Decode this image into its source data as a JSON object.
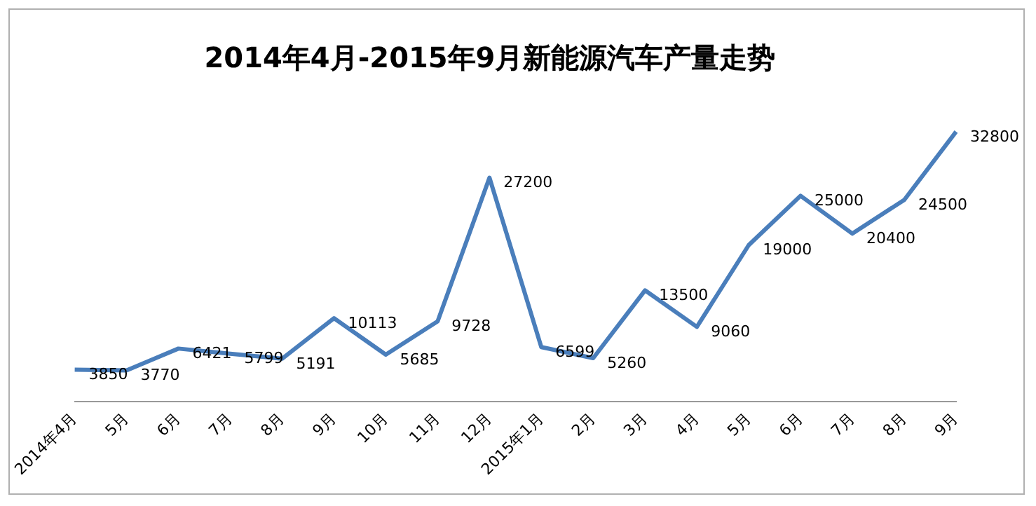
{
  "chart_data": {
    "type": "line",
    "title": "2014年4月-2015年9月新能源汽车产量走势",
    "categories": [
      "2014年4月",
      "5月",
      "6月",
      "7月",
      "8月",
      "9月",
      "10月",
      "11月",
      "12月",
      "2015年1月",
      "2月",
      "3月",
      "4月",
      "5月",
      "6月",
      "7月",
      "8月",
      "9月"
    ],
    "series": [
      {
        "color": "#4a7ebb",
        "values": [
          3850,
          3770,
          6421,
          5799,
          5191,
          10113,
          5685,
          9728,
          27200,
          6599,
          5260,
          13500,
          9060,
          19000,
          25000,
          20400,
          24500,
          32800
        ]
      }
    ],
    "data_labels": true,
    "grid": false,
    "legend": false,
    "tick_labels": "x",
    "marker": "none",
    "line_style": "solid"
  }
}
